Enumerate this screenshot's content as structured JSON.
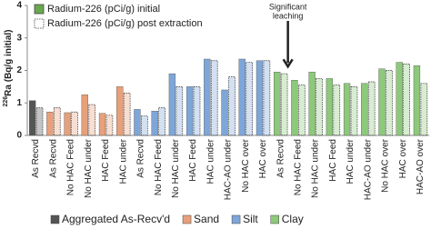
{
  "chart_data": {
    "type": "bar",
    "ylabel_sup": "226",
    "ylabel": "Ra (Bq/g initial)",
    "ylim": [
      0,
      4
    ],
    "yticks": [
      0,
      1,
      2,
      3,
      4
    ],
    "series_names": [
      "Radium-226 (pCi/g) initial",
      "Radium-226 (pCi/g) post extraction"
    ],
    "series_color": "#6aa84f",
    "annotation_lines": [
      "Significant",
      "leaching"
    ],
    "groups": [
      {
        "name": "Aggregated As-Recv'd",
        "color": "#555555",
        "categories": [
          "As Recvd"
        ],
        "initial": [
          1.07
        ],
        "post": [
          0.85
        ]
      },
      {
        "name": "Sand",
        "color": "#e8a07a",
        "categories": [
          "As Recvd",
          "No HAC Feed",
          "No HAC under",
          "HAC Feed",
          "HAC under"
        ],
        "initial": [
          0.72,
          0.7,
          1.25,
          0.68,
          1.5
        ],
        "post": [
          0.85,
          0.72,
          0.95,
          0.62,
          1.3
        ]
      },
      {
        "name": "Silt",
        "color": "#7ea6d8",
        "categories": [
          "As Recvd",
          "No HAC Feed",
          "No HAC under",
          "HAC Feed",
          "HAC under",
          "HAC-AO under",
          "No HAC over",
          "HAC over"
        ],
        "initial": [
          0.8,
          0.75,
          1.9,
          1.5,
          2.35,
          1.4,
          2.35,
          2.3
        ],
        "post": [
          0.6,
          0.85,
          1.5,
          1.5,
          2.3,
          1.8,
          2.25,
          2.3
        ]
      },
      {
        "name": "Clay",
        "color": "#8cc97a",
        "categories": [
          "As Recvd",
          "No HAC Feed",
          "No HAC under",
          "HAC Feed",
          "HAC under",
          "HAC-AO under",
          "No HAC over",
          "HAC over",
          "HAC-AO over"
        ],
        "initial": [
          1.95,
          1.7,
          1.95,
          1.75,
          1.6,
          1.6,
          2.05,
          2.25,
          2.15
        ],
        "post": [
          1.9,
          1.55,
          1.75,
          1.55,
          1.5,
          1.65,
          2.0,
          2.2,
          1.6
        ]
      }
    ]
  }
}
